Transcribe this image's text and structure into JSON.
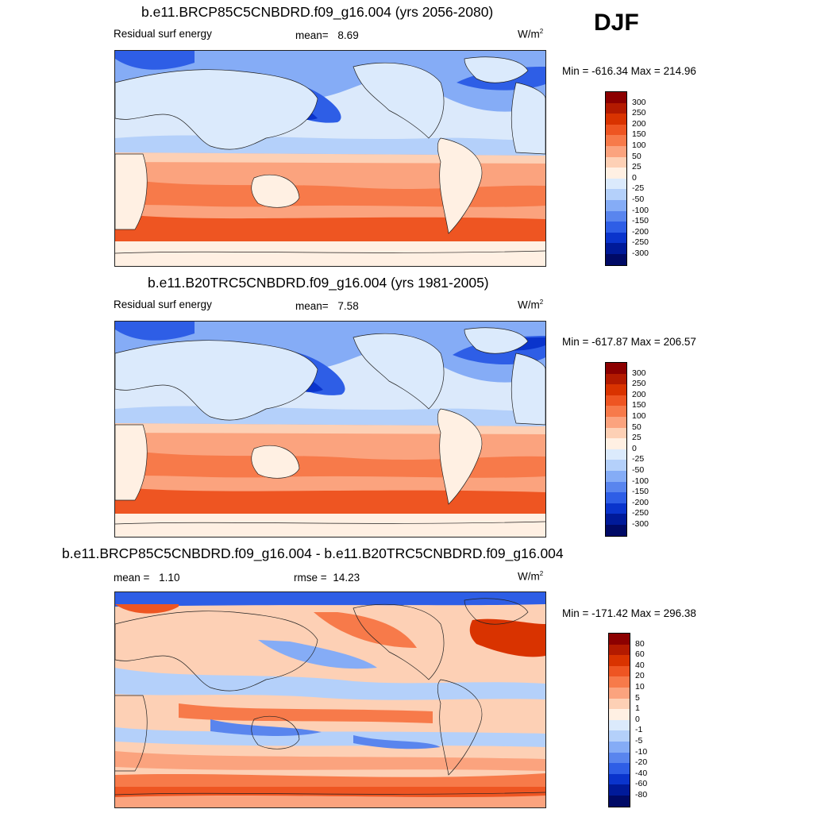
{
  "season": "DJF",
  "panels": [
    {
      "title": "b.e11.BRCP85C5CNBDRD.f09_g16.004 (yrs 2056-2080)",
      "variable": "Residual surf energy",
      "mean_label": "mean=",
      "mean_value": "8.69",
      "units_base": "W/m",
      "units_exp": "2",
      "minmax": "Min = -616.34 Max = 214.96",
      "colorbar_labels": [
        "300",
        "250",
        "200",
        "150",
        "100",
        "50",
        "25",
        "0",
        "-25",
        "-50",
        "-100",
        "-150",
        "-200",
        "-250",
        "-300"
      ]
    },
    {
      "title": "b.e11.B20TRC5CNBDRD.f09_g16.004 (yrs 1981-2005)",
      "variable": "Residual surf energy",
      "mean_label": "mean=",
      "mean_value": "7.58",
      "units_base": "W/m",
      "units_exp": "2",
      "minmax": "Min = -617.87 Max = 206.57",
      "colorbar_labels": [
        "300",
        "250",
        "200",
        "150",
        "100",
        "50",
        "25",
        "0",
        "-25",
        "-50",
        "-100",
        "-150",
        "-200",
        "-250",
        "-300"
      ]
    },
    {
      "title": "b.e11.BRCP85C5CNBDRD.f09_g16.004 - b.e11.B20TRC5CNBDRD.f09_g16.004",
      "mean_label": "mean =",
      "mean_value": "1.10",
      "rmse_label": "rmse =",
      "rmse_value": "14.23",
      "units_base": "W/m",
      "units_exp": "2",
      "minmax": "Min = -171.42 Max = 296.38",
      "colorbar_labels": [
        "80",
        "60",
        "40",
        "20",
        "10",
        "5",
        "1",
        "0",
        "-1",
        "-5",
        "-10",
        "-20",
        "-40",
        "-60",
        "-80"
      ]
    }
  ],
  "chart_data": [
    {
      "type": "heatmap",
      "title": "b.e11.BRCP85C5CNBDRD.f09_g16.004 (yrs 2056-2080)",
      "subtitle": "Residual surf energy",
      "mean": 8.69,
      "units": "W/m^2",
      "min": -616.34,
      "max": 214.96,
      "levels": [
        -300,
        -250,
        -200,
        -150,
        -100,
        -50,
        -25,
        0,
        25,
        50,
        100,
        150,
        200,
        250,
        300
      ]
    },
    {
      "type": "heatmap",
      "title": "b.e11.B20TRC5CNBDRD.f09_g16.004 (yrs 1981-2005)",
      "subtitle": "Residual surf energy",
      "mean": 7.58,
      "units": "W/m^2",
      "min": -617.87,
      "max": 206.57,
      "levels": [
        -300,
        -250,
        -200,
        -150,
        -100,
        -50,
        -25,
        0,
        25,
        50,
        100,
        150,
        200,
        250,
        300
      ]
    },
    {
      "type": "heatmap",
      "title": "b.e11.BRCP85C5CNBDRD.f09_g16.004 - b.e11.B20TRC5CNBDRD.f09_g16.004",
      "mean": 1.1,
      "rmse": 14.23,
      "units": "W/m^2",
      "min": -171.42,
      "max": 296.38,
      "levels": [
        -80,
        -60,
        -40,
        -20,
        -10,
        -5,
        -1,
        0,
        1,
        5,
        10,
        20,
        40,
        60,
        80
      ]
    }
  ],
  "colors": {
    "scale": [
      "#8c0000",
      "#b31a00",
      "#d93300",
      "#ee5522",
      "#f77a4a",
      "#fba37e",
      "#fdd0b5",
      "#fff0e3",
      "#dbeafc",
      "#b4d0fa",
      "#85acf6",
      "#5985ee",
      "#2e5ee6",
      "#0a34cc",
      "#001a99",
      "#000a66"
    ]
  }
}
